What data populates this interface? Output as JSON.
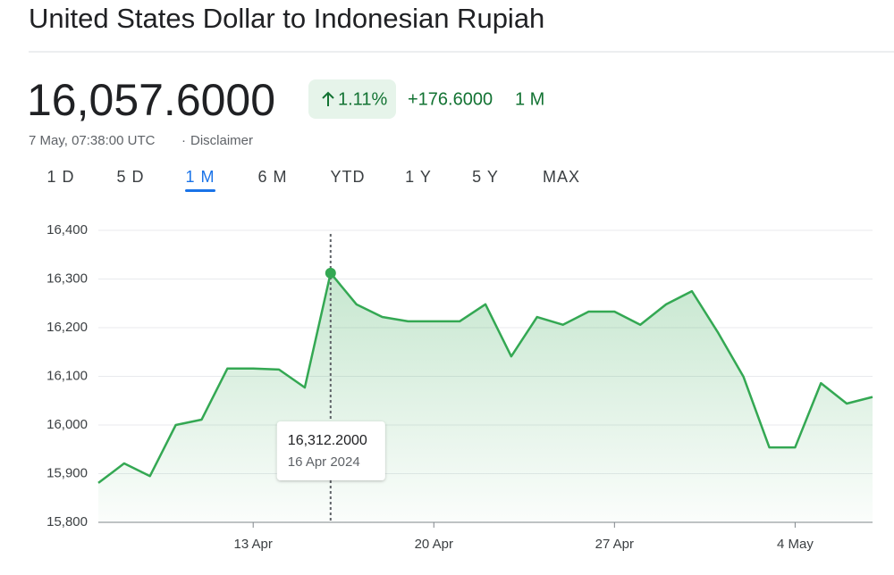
{
  "title": "United States Dollar to Indonesian Rupiah",
  "price": "16,057.6000",
  "change_percent": "1.11%",
  "change_absolute": "+176.6000",
  "change_period": "1 M",
  "timestamp": "7 May, 07:38:00 UTC",
  "separator": "·",
  "disclaimer": "Disclaimer",
  "tabs": [
    "1 D",
    "5 D",
    "1 M",
    "6 M",
    "YTD",
    "1 Y",
    "5 Y",
    "MAX"
  ],
  "selected_tab": "1 M",
  "chart_data": {
    "type": "line",
    "categories": [
      null,
      null,
      null,
      null,
      null,
      null,
      "13 Apr",
      null,
      null,
      null,
      null,
      null,
      null,
      "20 Apr",
      null,
      null,
      null,
      null,
      null,
      null,
      "27 Apr",
      null,
      null,
      null,
      null,
      null,
      null,
      "4 May",
      null,
      null,
      null
    ],
    "series": [
      {
        "name": "USD to IDR",
        "color": "#34a853",
        "values": [
          15881,
          15921,
          15895,
          16000,
          16011,
          16116,
          16116,
          16114,
          16077,
          16312.2,
          16248,
          16222,
          16213,
          16213,
          16213,
          16248,
          16141,
          16222,
          16206,
          16233,
          16233,
          16206,
          16248,
          16275,
          16191,
          16099,
          15954,
          15954,
          16086,
          16044,
          16057.6
        ]
      }
    ],
    "ylim": [
      15800,
      16400
    ],
    "yticks": [
      {
        "value": 15800,
        "label": "15,800"
      },
      {
        "value": 15900,
        "label": "15,900"
      },
      {
        "value": 16000,
        "label": "16,000"
      },
      {
        "value": 16100,
        "label": "16,100"
      },
      {
        "value": 16200,
        "label": "16,200"
      },
      {
        "value": 16300,
        "label": "16,300"
      },
      {
        "value": 16400,
        "label": "16,400"
      }
    ],
    "grid": true,
    "tooltip": {
      "value": 16312.2,
      "label": "16,312.2000",
      "date": "16 Apr 2024"
    }
  }
}
